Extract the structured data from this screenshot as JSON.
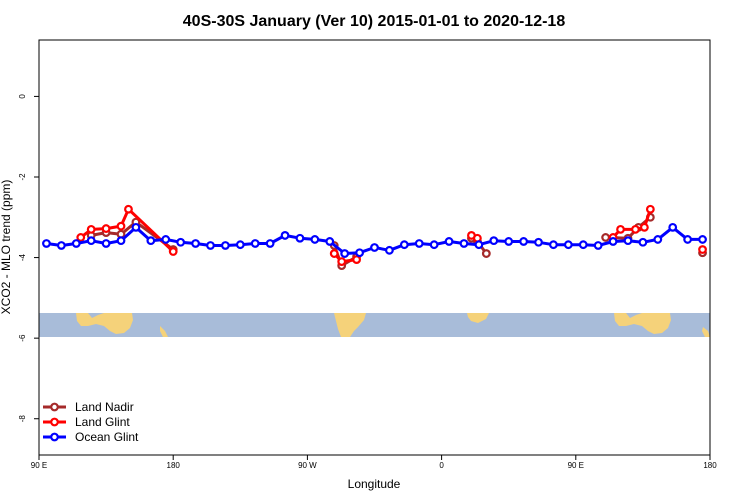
{
  "chart_data": {
    "type": "line",
    "title": "40S-30S January (Ver 10)   2015-01-01 to 2020-12-18",
    "xlabel": "Longitude",
    "ylabel": "XCO2 - MLO trend (ppm)",
    "xlim": [
      90,
      540
    ],
    "ylim": [
      -8.9,
      1.4
    ],
    "x_ticks": [
      {
        "value": 90,
        "label": "90 E"
      },
      {
        "value": 180,
        "label": "180"
      },
      {
        "value": 270,
        "label": "90 W"
      },
      {
        "value": 360,
        "label": "0"
      },
      {
        "value": 450,
        "label": "90 E"
      },
      {
        "value": 540,
        "label": "180"
      }
    ],
    "y_ticks": [
      0,
      -2,
      -4,
      -6,
      -8
    ],
    "grid": false,
    "legend_position": "bottom-left",
    "series": [
      {
        "name": "Land Nadir",
        "color": "#a52a2a",
        "segments": [
          [
            [
              125,
              -3.45
            ],
            [
              135,
              -3.38
            ],
            [
              145,
              -3.42
            ],
            [
              155,
              -3.12
            ],
            [
              180,
              -3.8
            ]
          ],
          [
            [
              288,
              -3.7
            ],
            [
              293,
              -4.2
            ],
            [
              303,
              -3.98
            ]
          ],
          [
            [
              380,
              -3.52
            ],
            [
              384,
              -3.6
            ],
            [
              390,
              -3.9
            ]
          ],
          [
            [
              470,
              -3.5
            ],
            [
              485,
              -3.52
            ],
            [
              492,
              -3.25
            ],
            [
              500,
              -3.0
            ]
          ],
          [
            [
              535,
              -3.88
            ]
          ]
        ]
      },
      {
        "name": "Land Glint",
        "color": "#ff0000",
        "segments": [
          [
            [
              118,
              -3.5
            ],
            [
              125,
              -3.3
            ],
            [
              135,
              -3.28
            ],
            [
              145,
              -3.22
            ],
            [
              150,
              -2.8
            ],
            [
              180,
              -3.85
            ]
          ],
          [
            [
              288,
              -3.9
            ],
            [
              293,
              -4.1
            ],
            [
              303,
              -4.05
            ]
          ],
          [
            [
              380,
              -3.45
            ],
            [
              384,
              -3.52
            ]
          ],
          [
            [
              475,
              -3.5
            ],
            [
              480,
              -3.3
            ],
            [
              490,
              -3.3
            ],
            [
              496,
              -3.25
            ],
            [
              500,
              -2.8
            ]
          ],
          [
            [
              535,
              -3.8
            ]
          ]
        ]
      },
      {
        "name": "Ocean Glint",
        "color": "#0000ff",
        "segments": [
          [
            [
              95,
              -3.65
            ],
            [
              105,
              -3.7
            ],
            [
              115,
              -3.65
            ],
            [
              125,
              -3.58
            ],
            [
              135,
              -3.65
            ],
            [
              145,
              -3.58
            ],
            [
              155,
              -3.25
            ],
            [
              165,
              -3.58
            ],
            [
              175,
              -3.55
            ],
            [
              185,
              -3.62
            ],
            [
              195,
              -3.65
            ],
            [
              205,
              -3.7
            ],
            [
              215,
              -3.7
            ],
            [
              225,
              -3.68
            ],
            [
              235,
              -3.65
            ],
            [
              245,
              -3.65
            ],
            [
              255,
              -3.45
            ],
            [
              265,
              -3.52
            ],
            [
              275,
              -3.55
            ],
            [
              285,
              -3.6
            ],
            [
              295,
              -3.9
            ],
            [
              305,
              -3.88
            ],
            [
              315,
              -3.75
            ],
            [
              325,
              -3.82
            ],
            [
              335,
              -3.68
            ],
            [
              345,
              -3.65
            ],
            [
              355,
              -3.68
            ],
            [
              365,
              -3.6
            ],
            [
              375,
              -3.65
            ],
            [
              385,
              -3.68
            ],
            [
              395,
              -3.58
            ],
            [
              405,
              -3.6
            ],
            [
              415,
              -3.6
            ],
            [
              425,
              -3.62
            ],
            [
              435,
              -3.68
            ],
            [
              445,
              -3.68
            ],
            [
              455,
              -3.68
            ],
            [
              465,
              -3.7
            ],
            [
              475,
              -3.6
            ],
            [
              485,
              -3.58
            ],
            [
              495,
              -3.62
            ],
            [
              505,
              -3.55
            ],
            [
              515,
              -3.25
            ],
            [
              525,
              -3.55
            ],
            [
              535,
              -3.55
            ]
          ]
        ]
      }
    ]
  }
}
